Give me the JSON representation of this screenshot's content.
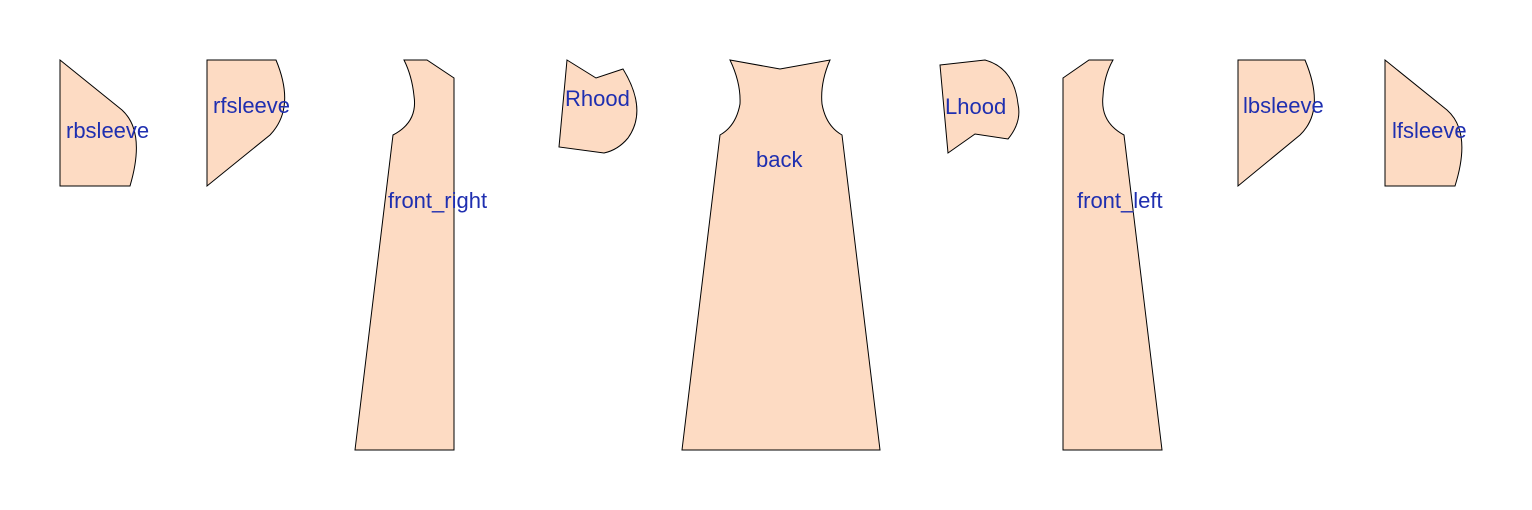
{
  "colors": {
    "piece_fill": "#FDDBC3",
    "outline": "#000000",
    "label": "#1F2FB0",
    "background": "#FFFFFF"
  },
  "pieces": {
    "rbsleeve": {
      "label": "rbsleeve"
    },
    "rfsleeve": {
      "label": "rfsleeve"
    },
    "front_right": {
      "label": "front_right"
    },
    "rhood": {
      "label": "Rhood"
    },
    "back": {
      "label": "back"
    },
    "lhood": {
      "label": "Lhood"
    },
    "front_left": {
      "label": "front_left"
    },
    "lbsleeve": {
      "label": "lbsleeve"
    },
    "lfsleeve": {
      "label": "lfsleeve"
    }
  }
}
